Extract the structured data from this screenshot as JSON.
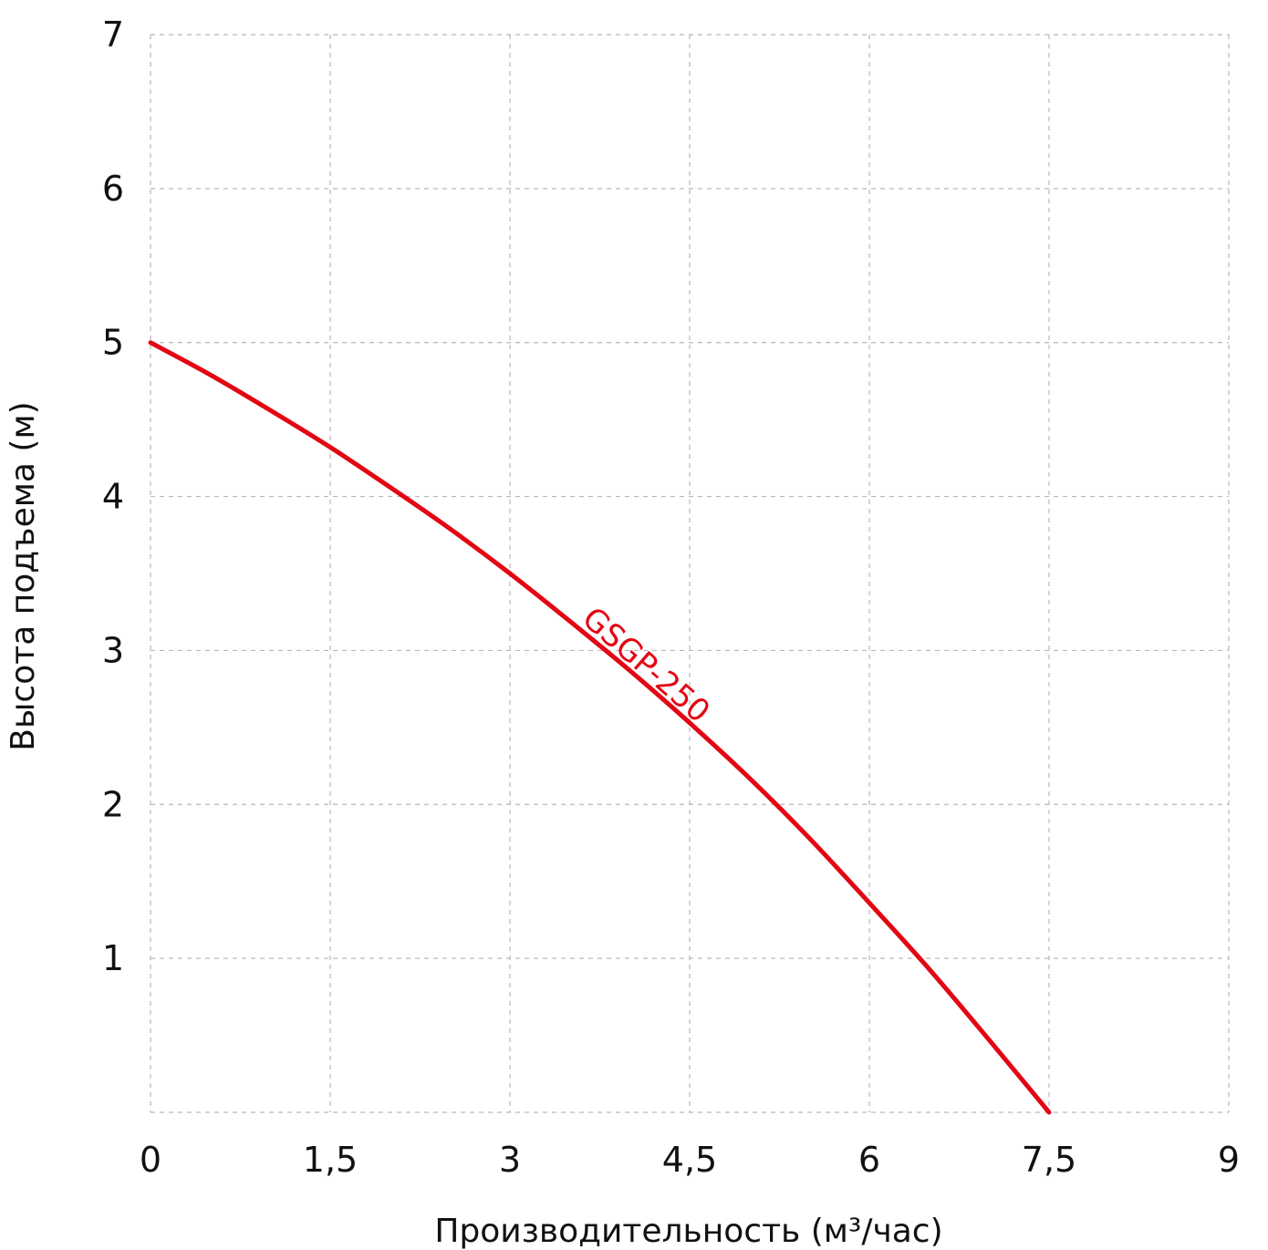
{
  "chart_data": {
    "type": "line",
    "xlabel": "Производительность (м³/час)",
    "ylabel": "Высота подъема (м)",
    "xlim": [
      0,
      9
    ],
    "ylim": [
      0,
      7
    ],
    "x_ticks": [
      "0",
      "1,5",
      "3",
      "4,5",
      "6",
      "7,5",
      "9"
    ],
    "y_ticks": [
      "1",
      "2",
      "3",
      "4",
      "5",
      "6",
      "7"
    ],
    "grid": true,
    "series": [
      {
        "name": "GSGP-250",
        "color": "#e30613",
        "x": [
          0,
          0.5,
          1,
          1.5,
          2,
          2.5,
          3,
          3.5,
          4,
          4.5,
          5,
          5.5,
          6,
          6.5,
          7,
          7.5
        ],
        "y": [
          5.0,
          4.79,
          4.56,
          4.32,
          4.06,
          3.79,
          3.5,
          3.19,
          2.87,
          2.53,
          2.17,
          1.78,
          1.36,
          0.93,
          0.47,
          0.0
        ]
      }
    ]
  }
}
